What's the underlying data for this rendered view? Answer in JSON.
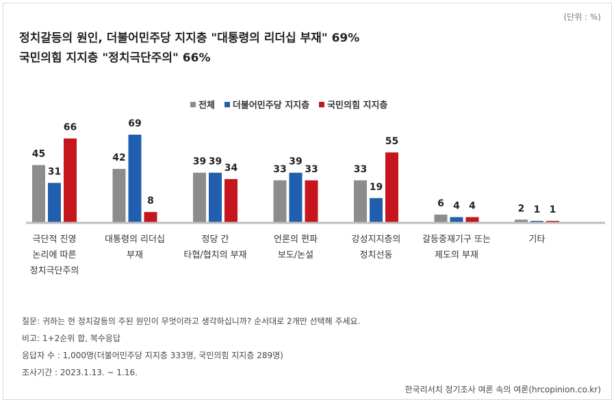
{
  "unit_label": "(단위 : %)",
  "title_lines": [
    "정치갈등의 원인, 더불어민주당 지지층 \"대통령의 리더십 부재\" 69%",
    "국민의힘 지지층 \"정치극단주의\" 66%"
  ],
  "notes": [
    "질문: 귀하는 현 정치갈등의 주된 원인이 무엇이라고 생각하십니까? 순서대로 2개만 선택해 주세요.",
    "비고: 1+2순위 합, 복수응답",
    "응답자 수 : 1,000명(더불어민주당 지지층 333명, 국민의힘 지지층 289명)",
    "조사기간 : 2023.1.13. ~ 1.16."
  ],
  "source": "한국리서치 정기조사 여론 속의 여론(hrcopinion.co.kr)",
  "colors": {
    "total": "#8c8c8c",
    "democratic": "#1f5fae",
    "ppp": "#c4161c",
    "baseline": "#bdbdbd"
  },
  "chart_data": {
    "type": "bar",
    "categories": [
      [
        "극단적 진영",
        "논리에 따른",
        "정치극단주의"
      ],
      [
        "대통령의 리더십",
        "부재"
      ],
      [
        "정당 간",
        "타협/협치의 부재"
      ],
      [
        "언론의 편파",
        "보도/논설"
      ],
      [
        "강성지지층의",
        "정치선동"
      ],
      [
        "갈등중재기구 또는",
        "제도의 부재"
      ],
      [
        "기타"
      ]
    ],
    "series": [
      {
        "name": "전체",
        "values": [
          45,
          42,
          39,
          33,
          33,
          6,
          2
        ]
      },
      {
        "name": "더불어민주당 지지층",
        "values": [
          31,
          69,
          39,
          39,
          19,
          4,
          1
        ]
      },
      {
        "name": "국민의힘 지지층",
        "values": [
          66,
          8,
          34,
          33,
          55,
          4,
          1
        ]
      }
    ],
    "ylim": [
      0,
      69
    ],
    "legend_position": "top-center",
    "grid": false
  }
}
